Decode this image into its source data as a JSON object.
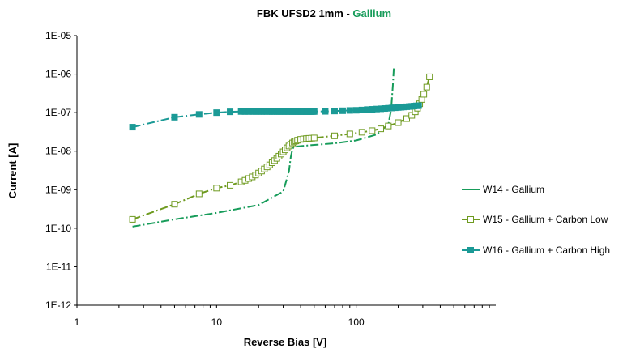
{
  "chart_data": {
    "type": "scatter",
    "title": "FBK UFSD2  1mm - ",
    "title_accent": "Gallium",
    "title_accent_color": "#179c5a",
    "xlabel": "Reverse Bias [V]",
    "ylabel": "Current [A]",
    "xscale": "log",
    "yscale": "log",
    "xlim": [
      1,
      1000
    ],
    "ylim": [
      1e-12,
      1e-05
    ],
    "x_ticks": [
      1,
      10,
      100
    ],
    "x_tick_labels": [
      "1",
      "10",
      "100"
    ],
    "y_ticks": [
      1e-12,
      1e-11,
      1e-10,
      1e-09,
      1e-08,
      1e-07,
      1e-06,
      1e-05
    ],
    "y_tick_labels": [
      "1E-12",
      "1E-11",
      "1E-10",
      "1E-09",
      "1E-08",
      "1E-07",
      "1E-06",
      "1E-05"
    ],
    "grid": false,
    "legend_position": "right",
    "series": [
      {
        "name": "W14 - Gallium",
        "color": "#179c5a",
        "marker": "none",
        "line": "dashdot",
        "x": [
          2.5,
          5,
          10,
          20,
          30,
          33,
          34,
          35,
          36,
          40,
          50,
          70,
          100,
          140,
          170,
          178,
          183,
          186
        ],
        "y": [
          1.1e-10,
          1.7e-10,
          2.5e-10,
          4e-10,
          9e-10,
          3e-09,
          7e-09,
          1.15e-08,
          1.3e-08,
          1.35e-08,
          1.45e-08,
          1.6e-08,
          1.9e-08,
          2.7e-08,
          5e-08,
          1.2e-07,
          5e-07,
          1.4e-06
        ]
      },
      {
        "name": "W15 - Gallium + Carbon Low",
        "color": "#6e9a1f",
        "marker": "hollow-square",
        "line": "dashdot",
        "x": [
          2.5,
          5,
          7.5,
          10,
          12.5,
          15,
          16,
          17,
          18,
          19,
          20,
          21,
          22,
          23,
          24,
          25,
          26,
          27,
          28,
          29,
          30,
          31,
          32,
          33,
          34,
          35,
          36,
          37,
          38,
          40,
          42,
          44,
          46,
          48,
          50,
          70,
          90,
          110,
          130,
          150,
          170,
          200,
          230,
          250,
          265,
          275,
          285,
          295,
          305,
          320,
          335
        ],
        "y": [
          1.7e-10,
          4.2e-10,
          7.8e-10,
          1.1e-09,
          1.3e-09,
          1.6e-09,
          1.75e-09,
          1.95e-09,
          2.15e-09,
          2.4e-09,
          2.7e-09,
          3.05e-09,
          3.45e-09,
          3.9e-09,
          4.4e-09,
          5e-09,
          5.7e-09,
          6.5e-09,
          7.4e-09,
          8.4e-09,
          9.6e-09,
          1.08e-08,
          1.22e-08,
          1.36e-08,
          1.5e-08,
          1.63e-08,
          1.74e-08,
          1.84e-08,
          1.92e-08,
          2.02e-08,
          2.08e-08,
          2.12e-08,
          2.15e-08,
          2.17e-08,
          2.2e-08,
          2.5e-08,
          2.8e-08,
          3.1e-08,
          3.4e-08,
          3.8e-08,
          4.5e-08,
          5.5e-08,
          7e-08,
          8.5e-08,
          1.05e-07,
          1.3e-07,
          1.7e-07,
          2.2e-07,
          3e-07,
          4.6e-07,
          8.5e-07
        ]
      },
      {
        "name": "W16 - Gallium + Carbon High",
        "color": "#1b9a96",
        "marker": "filled-square",
        "line": "dashdot",
        "x": [
          2.5,
          5,
          7.5,
          10,
          12.5,
          15,
          16,
          17,
          18,
          19,
          20,
          21,
          22,
          23,
          24,
          25,
          26,
          27,
          28,
          29,
          30,
          31,
          32,
          33,
          34,
          35,
          36,
          37,
          38,
          39,
          40,
          41,
          42,
          43,
          44,
          45,
          46,
          47,
          48,
          49,
          50,
          60,
          70,
          80,
          90,
          100,
          110,
          120,
          130,
          140,
          150,
          160,
          170,
          180,
          190,
          200,
          210,
          220,
          230,
          240,
          250,
          260,
          270,
          280
        ],
        "y": [
          4.2e-08,
          7.6e-08,
          9e-08,
          1e-07,
          1.05e-07,
          1.07e-07,
          1.07e-07,
          1.07e-07,
          1.07e-07,
          1.07e-07,
          1.07e-07,
          1.07e-07,
          1.07e-07,
          1.07e-07,
          1.07e-07,
          1.07e-07,
          1.07e-07,
          1.07e-07,
          1.07e-07,
          1.07e-07,
          1.07e-07,
          1.07e-07,
          1.07e-07,
          1.07e-07,
          1.07e-07,
          1.07e-07,
          1.07e-07,
          1.07e-07,
          1.07e-07,
          1.07e-07,
          1.07e-07,
          1.07e-07,
          1.07e-07,
          1.07e-07,
          1.07e-07,
          1.07e-07,
          1.07e-07,
          1.07e-07,
          1.07e-07,
          1.07e-07,
          1.07e-07,
          1.08e-07,
          1.1e-07,
          1.12e-07,
          1.14e-07,
          1.15e-07,
          1.17e-07,
          1.2e-07,
          1.22e-07,
          1.24e-07,
          1.26e-07,
          1.28e-07,
          1.3e-07,
          1.32e-07,
          1.34e-07,
          1.36e-07,
          1.38e-07,
          1.4e-07,
          1.42e-07,
          1.44e-07,
          1.46e-07,
          1.48e-07,
          1.5e-07,
          1.52e-07
        ]
      }
    ]
  }
}
